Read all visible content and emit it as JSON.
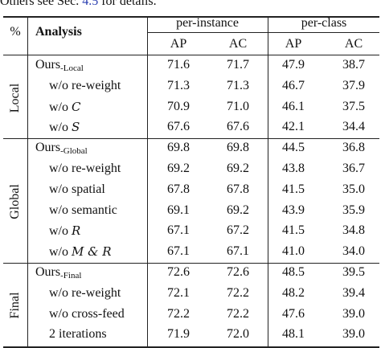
{
  "caption": {
    "before": "Others see Sec. ",
    "ref": "4.5",
    "after": " for details."
  },
  "header": {
    "pct": "%",
    "analysis": "Analysis",
    "per_instance": "per-instance",
    "per_class": "per-class",
    "ap1": "AP",
    "ac1": "AC",
    "ap2": "AP",
    "ac2": "AC"
  },
  "groups": [
    {
      "label": "Local",
      "rows": [
        {
          "name": "Ours",
          "sub": "-Local",
          "ap_i": "71.6",
          "ac_i": "71.7",
          "ap_c": "47.9",
          "ac_c": "38.7"
        },
        {
          "name": "w/o re-weight",
          "ap_i": "71.3",
          "ac_i": "71.3",
          "ap_c": "46.7",
          "ac_c": "37.9"
        },
        {
          "name": "w/o ",
          "sym": "C",
          "ap_i": "70.9",
          "ac_i": "71.0",
          "ap_c": "46.1",
          "ac_c": "37.5"
        },
        {
          "name": "w/o ",
          "sym": "S",
          "ap_i": "67.6",
          "ac_i": "67.6",
          "ap_c": "42.1",
          "ac_c": "34.4"
        }
      ]
    },
    {
      "label": "Global",
      "rows": [
        {
          "name": "Ours",
          "sub": "-Global",
          "ap_i": "69.8",
          "ac_i": "69.8",
          "ap_c": "44.5",
          "ac_c": "36.8"
        },
        {
          "name": "w/o re-weight",
          "ap_i": "69.2",
          "ac_i": "69.2",
          "ap_c": "43.8",
          "ac_c": "36.7"
        },
        {
          "name": "w/o spatial",
          "ap_i": "67.8",
          "ac_i": "67.8",
          "ap_c": "41.5",
          "ac_c": "35.0"
        },
        {
          "name": "w/o semantic",
          "ap_i": "69.1",
          "ac_i": "69.2",
          "ap_c": "43.9",
          "ac_c": "35.9"
        },
        {
          "name": "w/o ",
          "sym": "R",
          "ap_i": "67.1",
          "ac_i": "67.2",
          "ap_c": "41.5",
          "ac_c": "34.8"
        },
        {
          "name": "w/o ",
          "sym": "M & R",
          "ap_i": "67.1",
          "ac_i": "67.1",
          "ap_c": "41.0",
          "ac_c": "34.0"
        }
      ]
    },
    {
      "label": "Final",
      "rows": [
        {
          "name": "Ours",
          "sub": "-Final",
          "ap_i": "72.6",
          "ac_i": "72.6",
          "ap_c": "48.5",
          "ac_c": "39.5"
        },
        {
          "name": "w/o re-weight",
          "ap_i": "72.1",
          "ac_i": "72.2",
          "ap_c": "48.2",
          "ac_c": "39.4"
        },
        {
          "name": "w/o cross-feed",
          "ap_i": "72.2",
          "ac_i": "72.2",
          "ap_c": "47.6",
          "ac_c": "39.0"
        },
        {
          "name": "2 iterations",
          "ap_i": "71.9",
          "ac_i": "72.0",
          "ap_c": "48.1",
          "ac_c": "39.0"
        }
      ]
    }
  ]
}
